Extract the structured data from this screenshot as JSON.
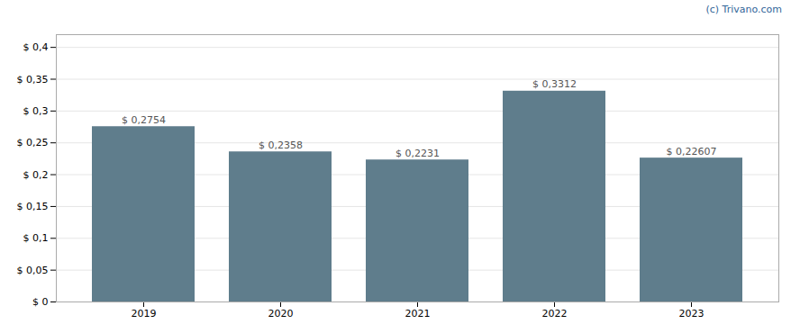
{
  "chart_data": {
    "type": "bar",
    "categories": [
      "2019",
      "2020",
      "2021",
      "2022",
      "2023"
    ],
    "values": [
      0.2754,
      0.2358,
      0.2231,
      0.3312,
      0.22607
    ],
    "value_labels": [
      "$ 0,2754",
      "$ 0,2358",
      "$ 0,2231",
      "$ 0,3312",
      "$ 0,22607"
    ],
    "color": "#5f7d8c",
    "ylim": [
      0,
      0.42
    ],
    "yticks": [
      {
        "value": 0,
        "label": "$ 0"
      },
      {
        "value": 0.05,
        "label": "$ 0,05"
      },
      {
        "value": 0.1,
        "label": "$ 0,1"
      },
      {
        "value": 0.15,
        "label": "$ 0,15"
      },
      {
        "value": 0.2,
        "label": "$ 0,2"
      },
      {
        "value": 0.25,
        "label": "$ 0,25"
      },
      {
        "value": 0.3,
        "label": "$ 0,3"
      },
      {
        "value": 0.35,
        "label": "$ 0,35"
      },
      {
        "value": 0.4,
        "label": "$ 0,4"
      }
    ],
    "grid": true,
    "data_labels": true,
    "annotations": [
      "(c) Trivano.com"
    ]
  }
}
